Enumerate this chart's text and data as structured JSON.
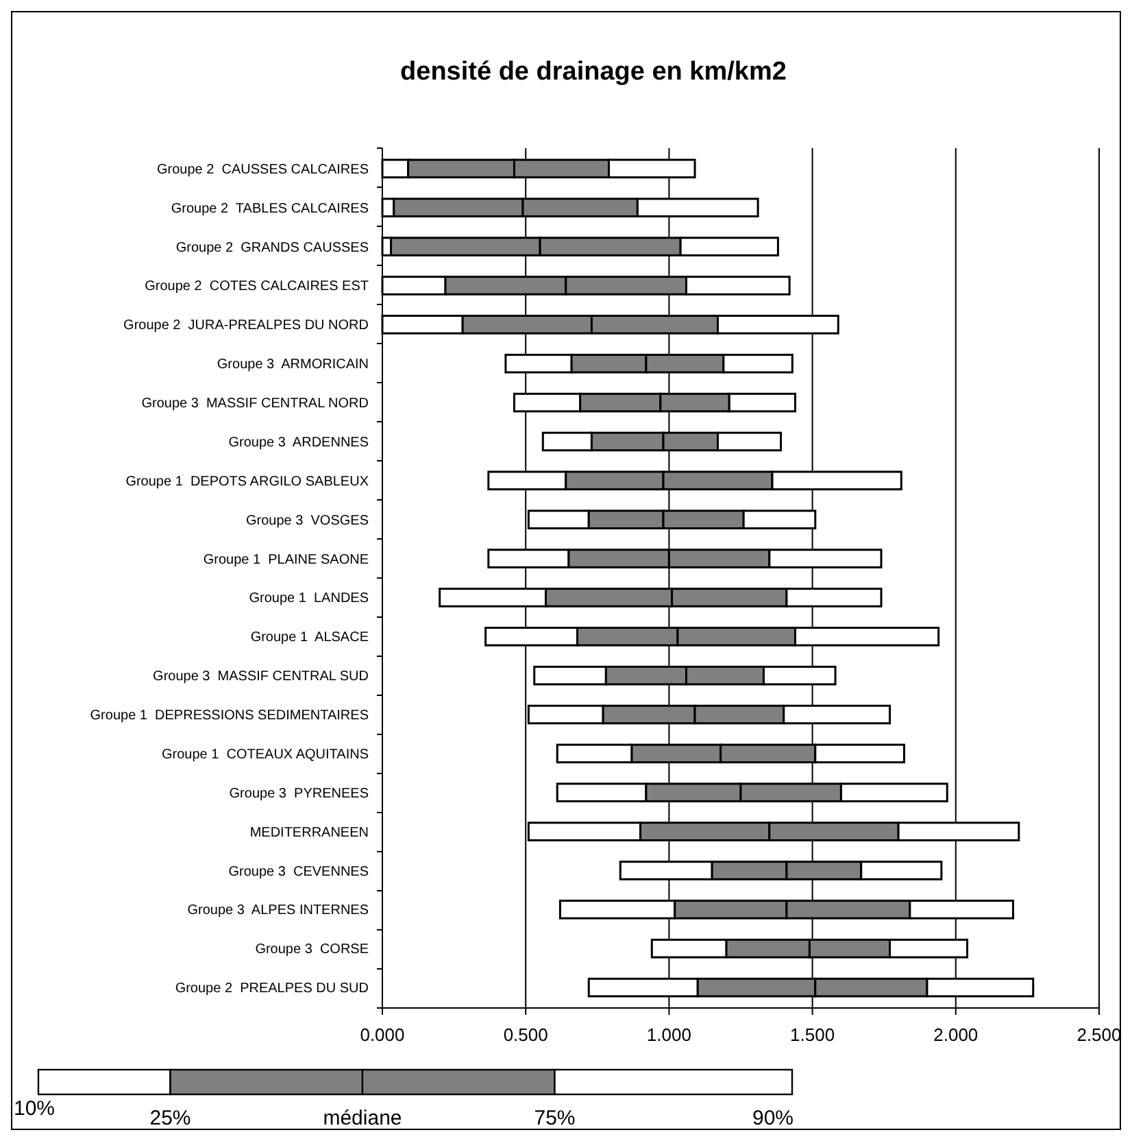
{
  "chart_data": {
    "type": "bar",
    "orientation": "horizontal",
    "title": "densité de drainage en km/km2",
    "categories": [
      "Groupe 2  CAUSSES CALCAIRES",
      "Groupe 2  TABLES CALCAIRES",
      "Groupe 2  GRANDS CAUSSES",
      "Groupe 2  COTES CALCAIRES EST",
      "Groupe 2  JURA-PREALPES DU NORD",
      "Groupe 3  ARMORICAIN",
      "Groupe 3  MASSIF CENTRAL NORD",
      "Groupe 3  ARDENNES",
      "Groupe 1  DEPOTS ARGILO SABLEUX",
      "Groupe 3  VOSGES",
      "Groupe 1  PLAINE SAONE",
      "Groupe 1  LANDES",
      "Groupe 1  ALSACE",
      "Groupe 3  MASSIF CENTRAL SUD",
      "Groupe 1  DEPRESSIONS SEDIMENTAIRES",
      "Groupe 1  COTEAUX AQUITAINS",
      "Groupe 3  PYRENEES",
      "MEDITERRANEEN",
      "Groupe 3  CEVENNES",
      "Groupe 3  ALPES INTERNES",
      "Groupe 3  CORSE",
      "Groupe 2  PREALPES DU SUD"
    ],
    "series": [
      {
        "color": "#ffffff",
        "base": [
          0,
          0,
          0,
          0,
          0,
          0.43,
          0.46,
          0.56,
          0.37,
          0.51,
          0.37,
          0.2,
          0.36,
          0.53,
          0.51,
          0.61,
          0.61,
          0.51,
          0.83,
          0.62,
          0.94,
          0.72
        ],
        "values": [
          0.09,
          0.04,
          0.03,
          0.22,
          0.28,
          0.23,
          0.23,
          0.17,
          0.27,
          0.21,
          0.28,
          0.37,
          0.32,
          0.25,
          0.26,
          0.26,
          0.31,
          0.39,
          0.32,
          0.4,
          0.26,
          0.38
        ]
      },
      {
        "color": "#808080",
        "base": [
          0.09,
          0.04,
          0.03,
          0.22,
          0.28,
          0.66,
          0.69,
          0.73,
          0.64,
          0.72,
          0.65,
          0.57,
          0.68,
          0.78,
          0.77,
          0.87,
          0.92,
          0.9,
          1.15,
          1.02,
          1.2,
          1.1
        ],
        "values": [
          0.37,
          0.45,
          0.52,
          0.42,
          0.45,
          0.26,
          0.28,
          0.25,
          0.34,
          0.26,
          0.35,
          0.44,
          0.35,
          0.28,
          0.32,
          0.31,
          0.33,
          0.45,
          0.26,
          0.39,
          0.29,
          0.41
        ]
      },
      {
        "color": "#808080",
        "base": [
          0.46,
          0.49,
          0.55,
          0.64,
          0.73,
          0.92,
          0.97,
          0.98,
          0.98,
          0.98,
          1.0,
          1.01,
          1.03,
          1.06,
          1.09,
          1.18,
          1.25,
          1.35,
          1.41,
          1.41,
          1.49,
          1.51
        ],
        "values": [
          0.33,
          0.4,
          0.49,
          0.42,
          0.44,
          0.27,
          0.24,
          0.19,
          0.38,
          0.28,
          0.35,
          0.4,
          0.41,
          0.27,
          0.31,
          0.33,
          0.35,
          0.45,
          0.26,
          0.43,
          0.28,
          0.39
        ]
      },
      {
        "color": "#ffffff",
        "base": [
          0.79,
          0.89,
          1.04,
          1.06,
          1.17,
          1.19,
          1.21,
          1.17,
          1.36,
          1.26,
          1.35,
          1.41,
          1.44,
          1.33,
          1.4,
          1.51,
          1.6,
          1.8,
          1.67,
          1.84,
          1.77,
          1.9
        ],
        "values": [
          0.3,
          0.42,
          0.34,
          0.36,
          0.42,
          0.24,
          0.23,
          0.22,
          0.45,
          0.25,
          0.39,
          0.33,
          0.5,
          0.25,
          0.37,
          0.31,
          0.37,
          0.42,
          0.28,
          0.36,
          0.27,
          0.37
        ]
      }
    ],
    "xlim": [
      0,
      2.5
    ],
    "xticks": [
      {
        "value": 0,
        "label": "0.000"
      },
      {
        "value": 0.5,
        "label": "0.500"
      },
      {
        "value": 1,
        "label": "1.000"
      },
      {
        "value": 1.5,
        "label": "1.500"
      },
      {
        "value": 2,
        "label": "2.000"
      },
      {
        "value": 2.5,
        "label": "2.500"
      }
    ],
    "grid": "x",
    "annotations": [
      "10%",
      "25%",
      "médiane",
      "75%",
      "90%"
    ]
  }
}
